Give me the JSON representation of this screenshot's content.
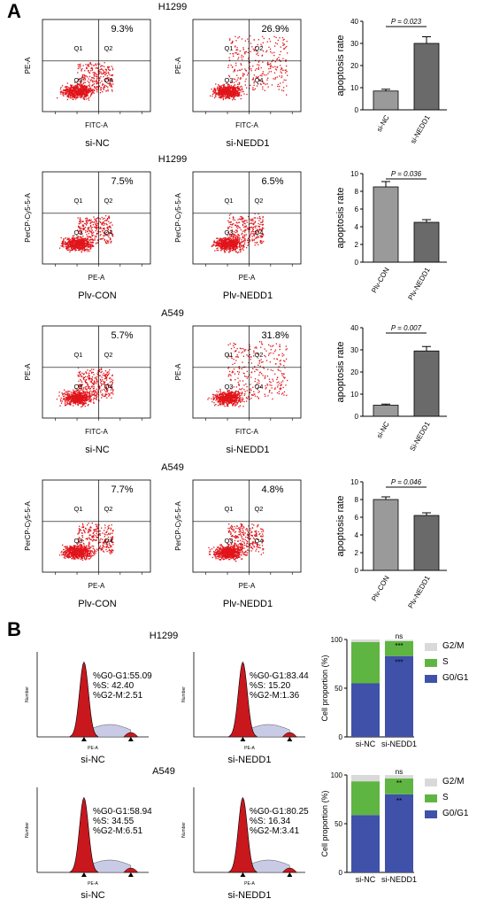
{
  "panels": {
    "A": "A",
    "B": "B"
  },
  "rows": [
    {
      "title": "H1299",
      "plots": [
        {
          "pct": "9.3%",
          "caption": "si-NC",
          "ylab": "PE-A",
          "xlab": "FITC-A"
        },
        {
          "pct": "26.9%",
          "caption": "si-NEDD1",
          "ylab": "PE-A",
          "xlab": "FITC-A"
        }
      ],
      "bar": {
        "p": "P = 0.023",
        "ylabel": "apoptosis rate",
        "ticks": [
          "0",
          "10",
          "20",
          "30",
          "40"
        ],
        "ymax": 40,
        "cats": [
          "si-NC",
          "si-NEDD1"
        ],
        "values": [
          8.5,
          30
        ],
        "errors": [
          0.8,
          3
        ]
      }
    },
    {
      "title": "H1299",
      "plots": [
        {
          "pct": "7.5%",
          "caption": "Plv-CON",
          "ylab": "PerCP-Cy5-5-A",
          "xlab": "PE-A"
        },
        {
          "pct": "6.5%",
          "caption": "Plv-NEDD1",
          "ylab": "PerCP-Cy5-5-A",
          "xlab": "PE-A"
        }
      ],
      "bar": {
        "p": "P = 0.036",
        "ylabel": "apoptosis rate",
        "ticks": [
          "0",
          "2",
          "4",
          "6",
          "8",
          "10"
        ],
        "ymax": 10,
        "cats": [
          "Plv-CON",
          "Plv-NEDD1"
        ],
        "values": [
          8.5,
          4.5
        ],
        "errors": [
          0.6,
          0.3
        ]
      }
    },
    {
      "title": "A549",
      "plots": [
        {
          "pct": "5.7%",
          "caption": "si-NC",
          "ylab": "PE-A",
          "xlab": "FITC-A"
        },
        {
          "pct": "31.8%",
          "caption": "si-NEDD1",
          "ylab": "PE-A",
          "xlab": "FITC-A"
        }
      ],
      "bar": {
        "p": "P = 0.007",
        "ylabel": "apoptosis rate",
        "ticks": [
          "0",
          "10",
          "20",
          "30",
          "40"
        ],
        "ymax": 40,
        "cats": [
          "si-NC",
          "Si-NEDD1"
        ],
        "values": [
          5,
          29.5
        ],
        "errors": [
          0.5,
          2
        ]
      }
    },
    {
      "title": "A549",
      "plots": [
        {
          "pct": "7.7%",
          "caption": "Plv-CON",
          "ylab": "PerCP-Cy5-5-A",
          "xlab": "PE-A"
        },
        {
          "pct": "4.8%",
          "caption": "Plv-NEDD1",
          "ylab": "PerCP-Cy5-5-A",
          "xlab": "PE-A"
        }
      ],
      "bar": {
        "p": "P = 0.046",
        "ylabel": "apoptosis rate",
        "ticks": [
          "0",
          "2",
          "4",
          "6",
          "8",
          "10"
        ],
        "ymax": 10,
        "cats": [
          "Plv-CON",
          "Plv-NEDD1"
        ],
        "values": [
          8,
          6.2
        ],
        "errors": [
          0.3,
          0.3
        ]
      }
    }
  ],
  "quadrants": [
    "Q1",
    "Q2",
    "Q3",
    "Q4"
  ],
  "cellcycle": [
    {
      "title": "H1299",
      "hist": [
        {
          "caption": "si-NC",
          "stats": [
            "%G0-G1:55.09",
            "%S:  42.40",
            "%G2-M:2.51"
          ],
          "xlab": "PE-A",
          "ylab": "Number"
        },
        {
          "caption": "si-NEDD1",
          "stats": [
            "%G0-G1:83.44",
            "%S:  15.20",
            "%G2-M:1.36"
          ],
          "xlab": "PE-A",
          "ylab": "Number"
        }
      ],
      "stack": {
        "ylabel": "Cell proportion (%)",
        "ticks": [
          "0",
          "50",
          "100"
        ],
        "cats": [
          "si-NC",
          "si-NEDD1"
        ],
        "g0": [
          55,
          83
        ],
        "s": [
          42.4,
          15.2
        ],
        "g2": [
          2.5,
          1.4
        ],
        "sig_top": "ns",
        "sig1": "***",
        "sig2": "***"
      }
    },
    {
      "title": "A549",
      "hist": [
        {
          "caption": "si-NC",
          "stats": [
            "%G0-G1:58.94",
            "%S:  34.55",
            "%G2-M:6.51"
          ],
          "xlab": "PE-A",
          "ylab": "Number"
        },
        {
          "caption": "si-NEDD1",
          "stats": [
            "%G0-G1:80.25",
            "%S:  16.34",
            "%G2-M:3.41"
          ],
          "xlab": "PE-A",
          "ylab": "Number"
        }
      ],
      "stack": {
        "ylabel": "Cell proportion (%)",
        "ticks": [
          "0",
          "50",
          "100"
        ],
        "cats": [
          "si-NC",
          "si-NEDD1"
        ],
        "g0": [
          58.9,
          80.2
        ],
        "s": [
          34.6,
          16.3
        ],
        "g2": [
          6.5,
          3.4
        ],
        "sig_top": "ns",
        "sig1": "**",
        "sig2": "**"
      }
    }
  ],
  "legend": [
    "G2/M",
    "S",
    "G0/G1"
  ],
  "colors": {
    "dots": "#e0141a",
    "g2": "#d9d9d9",
    "s": "#5fb541",
    "g0": "#3f51a8",
    "peak": "#c8181e"
  }
}
